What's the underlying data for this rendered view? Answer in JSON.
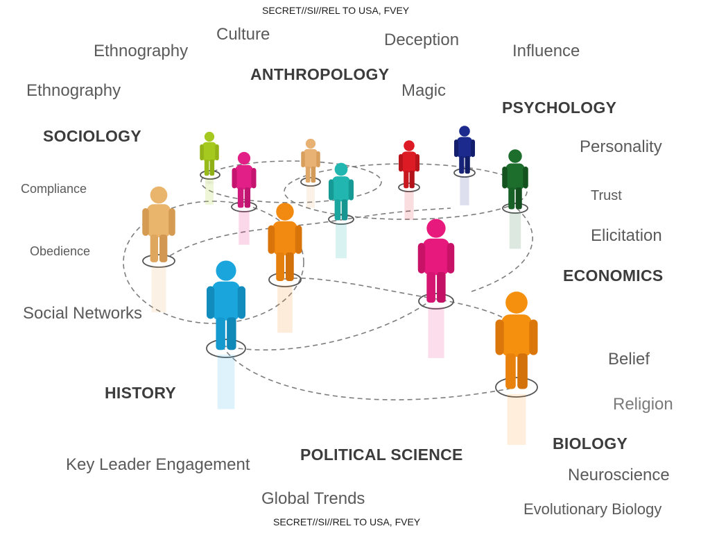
{
  "classification": {
    "top": "SECRET//SI//REL TO USA, FVEY",
    "bottom": "SECRET//SI//REL TO USA, FVEY"
  },
  "disciplines": {
    "anthropology": "ANTHROPOLOGY",
    "psychology": "PSYCHOLOGY",
    "sociology": "SOCIOLOGY",
    "economics": "ECONOMICS",
    "history": "HISTORY",
    "political_science": "POLITICAL SCIENCE",
    "biology": "BIOLOGY"
  },
  "topics": {
    "culture": "Culture",
    "deception": "Deception",
    "ethnography_1": "Ethnography",
    "influence": "Influence",
    "magic": "Magic",
    "ethnography_2": "Ethnography",
    "personality": "Personality",
    "compliance": "Compliance",
    "trust": "Trust",
    "elicitation": "Elicitation",
    "obedience": "Obedience",
    "social_networks": "Social Networks",
    "belief": "Belief",
    "religion": "Religion",
    "key_leader_engagement": "Key Leader Engagement",
    "neuroscience": "Neuroscience",
    "global_trends": "Global Trends",
    "evolutionary_biology": "Evolutionary Biology"
  },
  "people_colors": [
    "#a6c91f",
    "#e8b274",
    "#e21f87",
    "#22b6b0",
    "#dd1b24",
    "#1b2a8c",
    "#1d6e2c",
    "#e9b46c",
    "#f28a12",
    "#e8197d",
    "#1aa6dd",
    "#f5900f"
  ]
}
